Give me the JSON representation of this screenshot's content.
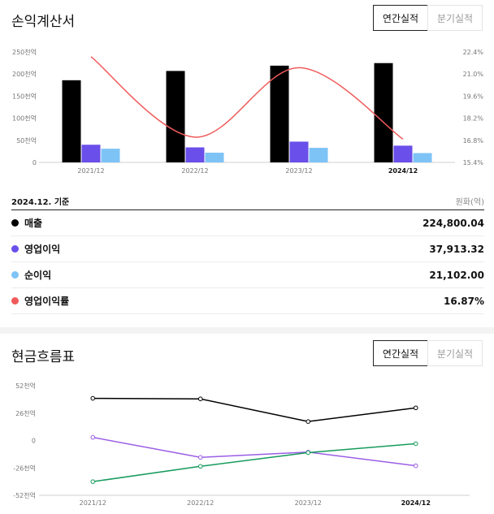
{
  "income": {
    "title": "손익계산서",
    "tabs": [
      {
        "label": "연간실적",
        "active": true
      },
      {
        "label": "분기실적",
        "active": false
      }
    ],
    "chart_data": {
      "type": "bar",
      "categories": [
        "2021/12",
        "2022/12",
        "2023/12",
        "2024/12"
      ],
      "left_ticks": [
        "250천억",
        "200천억",
        "150천억",
        "100천억",
        "50천억",
        "0"
      ],
      "right_ticks": [
        "22.4%",
        "21.0%",
        "19.6%",
        "18.2%",
        "16.8%",
        "15.4%"
      ],
      "ylim": [
        0,
        250000
      ],
      "y2lim": [
        15.4,
        22.4
      ],
      "series": [
        {
          "name": "매출",
          "type": "bar",
          "axis": "left",
          "color": "#000000",
          "values": [
            186000,
            207000,
            219000,
            224800.04
          ]
        },
        {
          "name": "영업이익",
          "type": "bar",
          "axis": "left",
          "color": "#6a4fea",
          "values": [
            40000,
            34000,
            47000,
            37913.32
          ]
        },
        {
          "name": "순이익",
          "type": "bar",
          "axis": "left",
          "color": "#7ec3f5",
          "values": [
            31000,
            22000,
            33000,
            21102.0
          ]
        },
        {
          "name": "영업이익률",
          "type": "line",
          "axis": "right",
          "color": "#ef5b5b",
          "values": [
            22.1,
            17.0,
            21.4,
            16.87
          ]
        }
      ]
    },
    "summary_date": "2024.12. 기준",
    "unit": "원화(억)",
    "rows": [
      {
        "label": "매출",
        "value": "224,800.04",
        "color": "#000000"
      },
      {
        "label": "영업이익",
        "value": "37,913.32",
        "color": "#6a4fea"
      },
      {
        "label": "순이익",
        "value": "21,102.00",
        "color": "#7ec3f5"
      },
      {
        "label": "영업이익률",
        "value": "16.87%",
        "color": "#ef5b5b"
      }
    ]
  },
  "cashflow": {
    "title": "현금흐름표",
    "tabs": [
      {
        "label": "연간실적",
        "active": true
      },
      {
        "label": "분기실적",
        "active": false
      }
    ],
    "chart_data": {
      "type": "line",
      "categories": [
        "2021/12",
        "2022/12",
        "2023/12",
        "2024/12"
      ],
      "y_ticks": [
        "52천억",
        "26천억",
        "0",
        "-26천억",
        "-52천억"
      ],
      "ylim": [
        -52,
        52
      ],
      "series": [
        {
          "color": "#000000",
          "values": [
            40,
            39.5,
            18,
            31
          ]
        },
        {
          "color": "#9b5de5",
          "values": [
            3,
            -16,
            -11,
            -24
          ]
        },
        {
          "color": "#169b5b",
          "values": [
            -39,
            -24.5,
            -11.5,
            -3
          ]
        }
      ]
    }
  }
}
